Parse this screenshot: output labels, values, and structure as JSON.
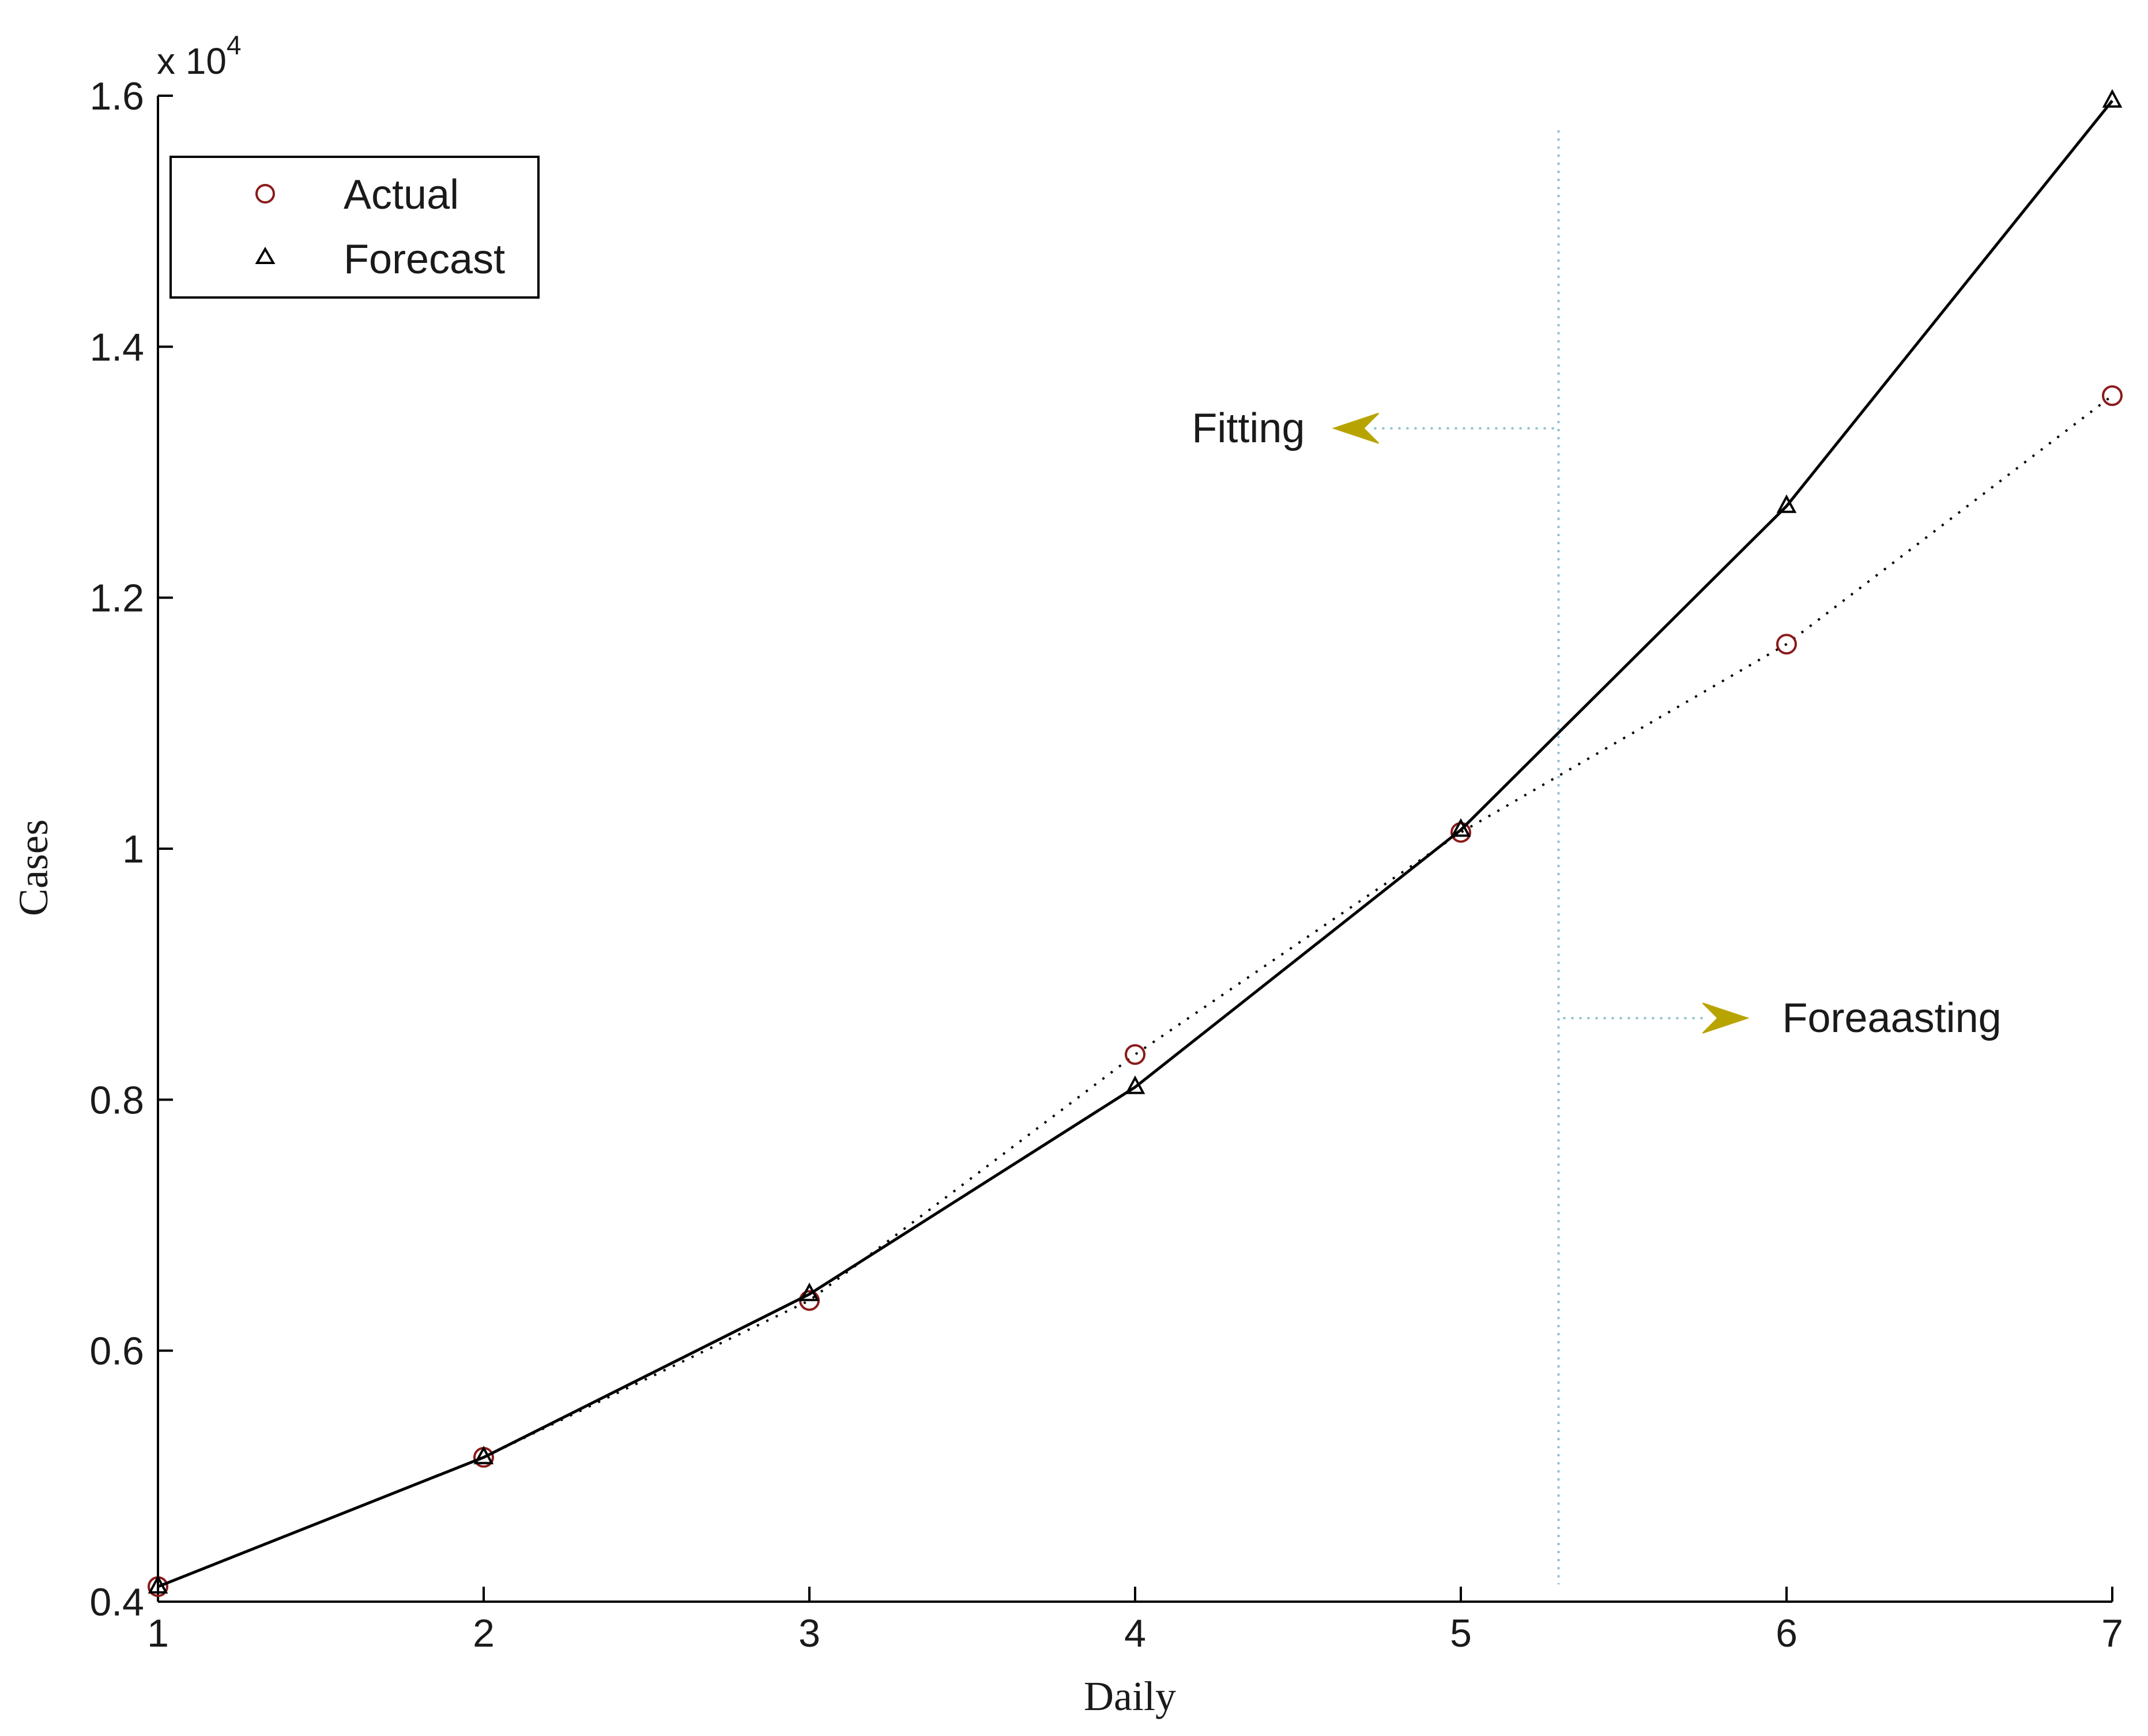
{
  "chart_data": {
    "type": "line",
    "xlabel": "Daily",
    "ylabel": "Cases",
    "y_multiplier": {
      "base": "x 10",
      "exponent": "4"
    },
    "xlim": [
      1,
      7
    ],
    "ylim": [
      0.4,
      1.6
    ],
    "x_ticks": [
      "1",
      "2",
      "3",
      "4",
      "5",
      "6",
      "7"
    ],
    "y_ticks": [
      "0.4",
      "0.6",
      "0.8",
      "1",
      "1.2",
      "1.4",
      "1.6"
    ],
    "x": [
      1,
      2,
      3,
      4,
      5,
      6,
      7
    ],
    "series": [
      {
        "name": "Actual",
        "marker": "circle",
        "line": "dotted",
        "color": "#8b1a1a",
        "values": [
          0.412,
          0.515,
          0.64,
          0.836,
          1.013,
          1.163,
          1.361
        ]
      },
      {
        "name": "Forecast",
        "marker": "triangle",
        "line": "solid",
        "color": "#000000",
        "values": [
          0.412,
          0.515,
          0.645,
          0.81,
          1.015,
          1.273,
          1.596
        ]
      }
    ],
    "divider_x": 5.3,
    "divider_color": "#8fc1d6",
    "arrow_color": "#b8a400",
    "annotations": [
      {
        "text": "Fitting",
        "direction": "left",
        "y": 1.335
      },
      {
        "text": "Foreaasting",
        "direction": "right",
        "y": 0.865
      }
    ],
    "legend": {
      "placement": "top-left",
      "entries": [
        "Actual",
        "Forecast"
      ]
    },
    "grid": false
  }
}
